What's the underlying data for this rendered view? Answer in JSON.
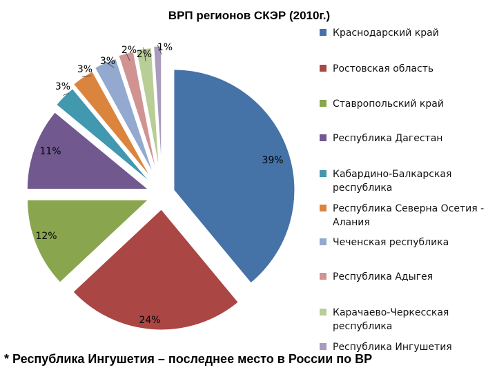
{
  "chart_data": {
    "type": "pie",
    "title": "ВРП регионов СКЭР (2010г.)",
    "slices": [
      {
        "label": [
          "Краснодарский край"
        ],
        "value": 39,
        "display": "39%",
        "color": "#4572A7"
      },
      {
        "label": [
          "Ростовская область"
        ],
        "value": 24,
        "display": "24%",
        "color": "#AA4643"
      },
      {
        "label": [
          "Ставропольский край"
        ],
        "value": 12,
        "display": "12%",
        "color": "#89A54E"
      },
      {
        "label": [
          "Республика Дагестан"
        ],
        "value": 11,
        "display": "11%",
        "color": "#71588F"
      },
      {
        "label": [
          "Кабардино-Балкарская",
          "республика"
        ],
        "value": 3,
        "display": "3%",
        "color": "#4198AF"
      },
      {
        "label": [
          "Республика Северна Осетия -",
          "Алания"
        ],
        "value": 3,
        "display": "3%",
        "color": "#DB843D"
      },
      {
        "label": [
          "Чеченская республика"
        ],
        "value": 3,
        "display": "3%",
        "color": "#93A9CF"
      },
      {
        "label": [
          "Республика Адыгея"
        ],
        "value": 2,
        "display": "2%",
        "color": "#D19392"
      },
      {
        "label": [
          "Карачаево-Черкесская",
          "республика"
        ],
        "value": 2,
        "display": "2%",
        "color": "#B9CD96"
      },
      {
        "label": [
          "Республика Ингушетия"
        ],
        "value": 1,
        "display": "1%",
        "color": "#A99BBD"
      }
    ],
    "legend_position": "right"
  },
  "footnote": "* Республика Ингушетия – последнее место в России по ВРП"
}
